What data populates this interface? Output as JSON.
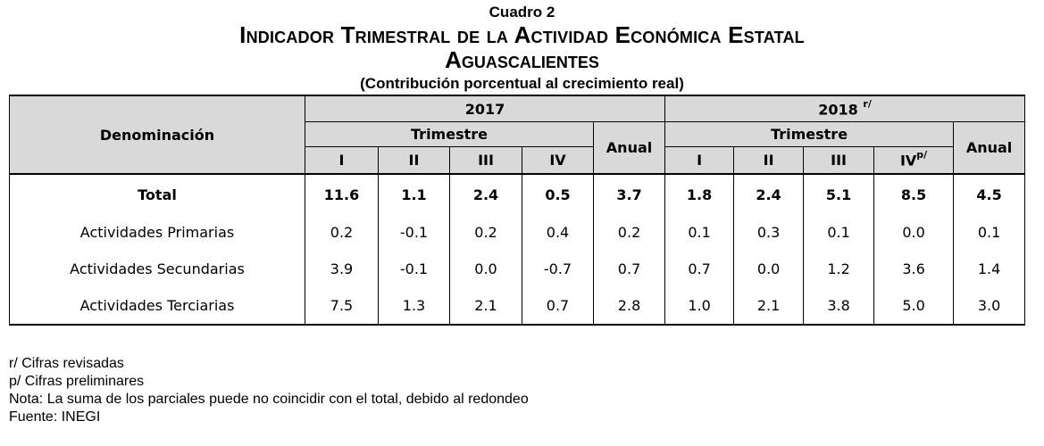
{
  "header": {
    "cuadro": "Cuadro 2",
    "title_line1": "Indicador Trimestral de la Actividad Económica Estatal",
    "title_line2": "Aguascalientes",
    "subtitle": "(Contribución porcentual al crecimiento real)"
  },
  "table": {
    "denominacion_label": "Denominación",
    "year_2017": "2017",
    "year_2018": "2018",
    "year_2018_sup": "r/",
    "trimestre_label": "Trimestre",
    "anual_label": "Anual",
    "quarters_2017": [
      "I",
      "II",
      "III",
      "IV"
    ],
    "quarters_2018": [
      "I",
      "II",
      "III",
      "IV"
    ],
    "q4_2018_sup": "p/",
    "rows": [
      {
        "label": "Total",
        "v": [
          "11.6",
          "1.1",
          "2.4",
          "0.5",
          "3.7",
          "1.8",
          "2.4",
          "5.1",
          "8.5",
          "4.5"
        ]
      },
      {
        "label": "Actividades Primarias",
        "v": [
          "0.2",
          "-0.1",
          "0.2",
          "0.4",
          "0.2",
          "0.1",
          "0.3",
          "0.1",
          "0.0",
          "0.1"
        ]
      },
      {
        "label": "Actividades Secundarias",
        "v": [
          "3.9",
          "-0.1",
          "0.0",
          "-0.7",
          "0.7",
          "0.7",
          "0.0",
          "1.2",
          "3.6",
          "1.4"
        ]
      },
      {
        "label": "Actividades Terciarias",
        "v": [
          "7.5",
          "1.3",
          "2.1",
          "0.7",
          "2.8",
          "1.0",
          "2.1",
          "3.8",
          "5.0",
          "3.0"
        ]
      }
    ]
  },
  "footnotes": {
    "revisadas": "r/ Cifras revisadas",
    "preliminares": "p/ Cifras preliminares",
    "nota": "Nota: La suma de los parciales puede no coincidir con el total, debido al redondeo",
    "fuente": "Fuente: INEGI"
  }
}
